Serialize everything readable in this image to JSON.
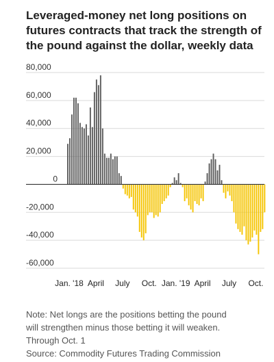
{
  "title_lines": [
    "Leveraged-money net long positions on",
    "futures contracts that track the strength of",
    "the pound against the dollar, weekly data"
  ],
  "notes": {
    "note_lines": [
      "Note: Net longs are the positions betting the pound",
      "will strengthen minus those betting it will weaken.",
      "Through Oct. 1"
    ],
    "source": "Source: Commodity Futures Trading Commission"
  },
  "colors": {
    "positive": "#5c5c5c",
    "negative": "#f5c400",
    "gridline": "#d9d9d9",
    "zero_line": "#333333"
  },
  "chart_data": {
    "type": "bar",
    "title": "Leveraged-money net long positions on futures contracts that track the strength of the pound against the dollar, weekly data",
    "ylim": [
      -60000,
      80000
    ],
    "y_ticks": [
      80000,
      60000,
      40000,
      20000,
      0,
      -20000,
      -40000,
      -60000
    ],
    "y_tick_labels": [
      "80,000",
      "60,000",
      "40,000",
      "20,000",
      "0",
      "-20,000",
      "-40,000",
      "-60,000"
    ],
    "x_tick_labels": [
      {
        "label": "Jan. '18",
        "week_index": 1
      },
      {
        "label": "April",
        "week_index": 14
      },
      {
        "label": "July",
        "week_index": 27
      },
      {
        "label": "Oct.",
        "week_index": 40
      },
      {
        "label": "Jan. '19",
        "week_index": 53
      },
      {
        "label": "April",
        "week_index": 66
      },
      {
        "label": "July",
        "week_index": 79
      },
      {
        "label": "Oct.",
        "week_index": 92
      }
    ],
    "grid": true,
    "series": [
      {
        "values": [
          29000,
          33000,
          50000,
          62000,
          62000,
          58000,
          44000,
          41000,
          40000,
          43000,
          35000,
          55000,
          41000,
          66000,
          75000,
          71000,
          78000,
          40000,
          22000,
          19000,
          19000,
          22000,
          18000,
          20000,
          20000,
          8000,
          6000,
          -3000,
          -7000,
          -8000,
          -10000,
          -9000,
          -18000,
          -20000,
          -23000,
          -34000,
          -38000,
          -40000,
          -35000,
          -22000,
          -20000,
          -20000,
          -24000,
          -22000,
          -23000,
          -20000,
          -14000,
          -12000,
          -10000,
          -8000,
          -2000,
          1000,
          5000,
          3000,
          8000,
          1000,
          -2000,
          -12000,
          -10000,
          -15000,
          -18000,
          -20000,
          -12000,
          -14000,
          -15000,
          -10000,
          -12000,
          2000,
          8000,
          15000,
          18000,
          22000,
          18000,
          10000,
          14000,
          3000,
          -6000,
          -10000,
          -5000,
          -8000,
          -12000,
          -20000,
          -28000,
          -32000,
          -34000,
          -36000,
          -30000,
          -40000,
          -43000,
          -41000,
          -38000,
          -33000,
          -36000,
          -50000,
          -34000,
          -32000,
          -20000
        ]
      }
    ]
  }
}
